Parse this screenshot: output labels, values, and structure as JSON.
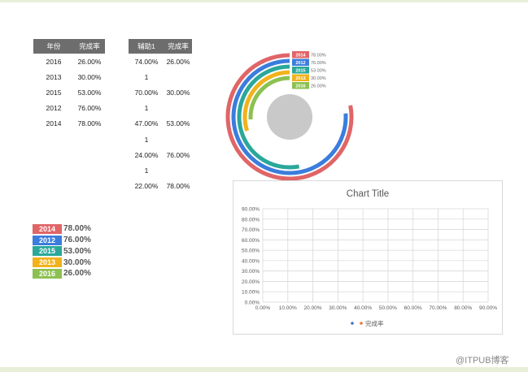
{
  "table1": {
    "headers": [
      "年份",
      "完成率"
    ],
    "rows": [
      [
        "2016",
        "26.00%"
      ],
      [
        "2013",
        "30.00%"
      ],
      [
        "2015",
        "53.00%"
      ],
      [
        "2012",
        "76.00%"
      ],
      [
        "2014",
        "78.00%"
      ]
    ]
  },
  "table2": {
    "headers": [
      "辅助1",
      "完成率"
    ],
    "rows": [
      [
        "74.00%",
        "26.00%"
      ],
      [
        "1",
        ""
      ],
      [
        "70.00%",
        "30.00%"
      ],
      [
        "1",
        ""
      ],
      [
        "47.00%",
        "53.00%"
      ],
      [
        "1",
        ""
      ],
      [
        "24.00%",
        "76.00%"
      ],
      [
        "1",
        ""
      ],
      [
        "22.00%",
        "78.00%"
      ]
    ]
  },
  "legend": [
    {
      "year": "2014",
      "value": "78.00%",
      "color": "#e06567"
    },
    {
      "year": "2012",
      "value": "76.00%",
      "color": "#3b7ddd"
    },
    {
      "year": "2015",
      "value": "53.00%",
      "color": "#2aa89a"
    },
    {
      "year": "2013",
      "value": "30.00%",
      "color": "#f2b21c"
    },
    {
      "year": "2016",
      "value": "26.00%",
      "color": "#8cc152"
    }
  ],
  "chart_data": [
    {
      "type": "radial-bar",
      "series": [
        {
          "name": "2014",
          "value": 0.78
        },
        {
          "name": "2012",
          "value": 0.76
        },
        {
          "name": "2015",
          "value": 0.53
        },
        {
          "name": "2013",
          "value": 0.3
        },
        {
          "name": "2016",
          "value": 0.26
        }
      ],
      "labels": [
        "2014",
        "2012",
        "2015",
        "2013",
        "2016"
      ],
      "value_labels": [
        "78.00%",
        "76.00%",
        "53.00%",
        "30.00%",
        "26.00%"
      ]
    },
    {
      "type": "scatter",
      "title": "Chart Title",
      "x_ticks": [
        "0.00%",
        "10.00%",
        "20.00%",
        "30.00%",
        "40.00%",
        "50.00%",
        "60.00%",
        "70.00%",
        "80.00%",
        "90.00%"
      ],
      "y_ticks": [
        "0.00%",
        "10.00%",
        "20.00%",
        "30.00%",
        "40.00%",
        "50.00%",
        "60.00%",
        "70.00%",
        "80.00%",
        "90.00%"
      ],
      "xlim": [
        0,
        0.9
      ],
      "ylim": [
        0,
        0.9
      ],
      "grid": true,
      "legend": "bottom",
      "legend_label": "完成率",
      "legend_colors": [
        "#4472c4",
        "#ed7d31"
      ],
      "series": [
        {
          "name": "完成率",
          "points": []
        }
      ]
    }
  ],
  "watermark": "@ITPUB博客"
}
